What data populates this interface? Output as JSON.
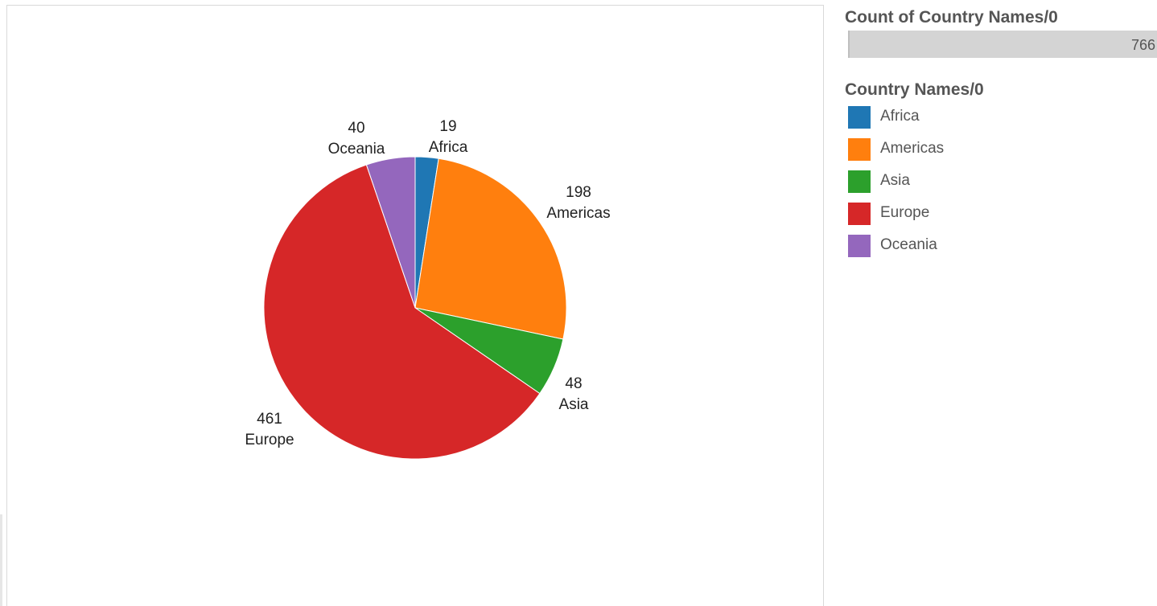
{
  "chart_data": {
    "type": "pie",
    "categories": [
      "Africa",
      "Americas",
      "Asia",
      "Europe",
      "Oceania"
    ],
    "values": [
      19,
      198,
      48,
      461,
      40
    ],
    "colors": [
      "#1f77b4",
      "#ff7f0e",
      "#2ca02c",
      "#d62728",
      "#9467bd"
    ],
    "legend_title": "Country Names/0",
    "legend_position": "right",
    "start_angle": "12 o'clock, clockwise"
  },
  "count_panel": {
    "title": "Count of Country Names/0",
    "value": "766"
  },
  "legend": {
    "title": "Country Names/0",
    "items": [
      {
        "label": "Africa",
        "color": "#1f77b4"
      },
      {
        "label": "Americas",
        "color": "#ff7f0e"
      },
      {
        "label": "Asia",
        "color": "#2ca02c"
      },
      {
        "label": "Europe",
        "color": "#d62728"
      },
      {
        "label": "Oceania",
        "color": "#9467bd"
      }
    ]
  }
}
